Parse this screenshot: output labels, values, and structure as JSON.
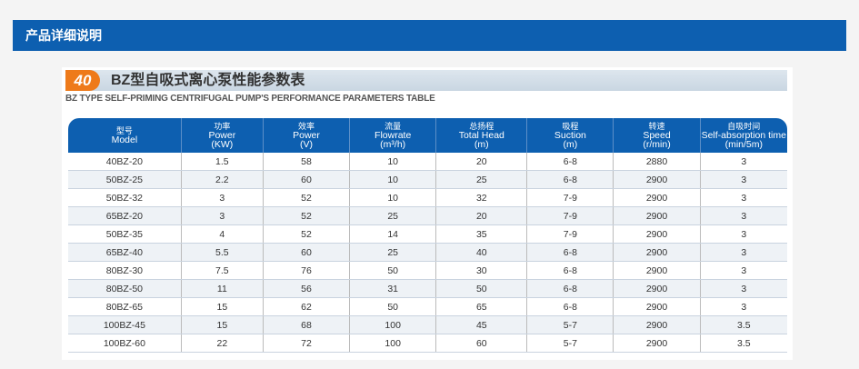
{
  "header": {
    "title": "产品详细说明"
  },
  "table": {
    "badge": "40",
    "title": "BZ型自吸式离心泵性能参数表",
    "subtitle": "BZ TYPE SELF-PRIMING CENTRIFUGAL PUMP'S PERFORMANCE PARAMETERS TABLE",
    "columns": [
      [
        "型号",
        "Model",
        ""
      ],
      [
        "功率",
        "Power",
        "(KW)"
      ],
      [
        "效率",
        "Power",
        "(V)"
      ],
      [
        "流量",
        "Flowrate",
        "(m³/h)"
      ],
      [
        "总扬程",
        "Total Head",
        "(m)"
      ],
      [
        "吸程",
        "Suction",
        "(m)"
      ],
      [
        "转速",
        "Speed",
        "(r/min)"
      ],
      [
        "自吸时间",
        "Self-absorption time",
        "(min/5m)"
      ]
    ],
    "rows": [
      [
        "40BZ-20",
        "1.5",
        "58",
        "10",
        "20",
        "6-8",
        "2880",
        "3"
      ],
      [
        "50BZ-25",
        "2.2",
        "60",
        "10",
        "25",
        "6-8",
        "2900",
        "3"
      ],
      [
        "50BZ-32",
        "3",
        "52",
        "10",
        "32",
        "7-9",
        "2900",
        "3"
      ],
      [
        "65BZ-20",
        "3",
        "52",
        "25",
        "20",
        "7-9",
        "2900",
        "3"
      ],
      [
        "50BZ-35",
        "4",
        "52",
        "14",
        "35",
        "7-9",
        "2900",
        "3"
      ],
      [
        "65BZ-40",
        "5.5",
        "60",
        "25",
        "40",
        "6-8",
        "2900",
        "3"
      ],
      [
        "80BZ-30",
        "7.5",
        "76",
        "50",
        "30",
        "6-8",
        "2900",
        "3"
      ],
      [
        "80BZ-50",
        "11",
        "56",
        "31",
        "50",
        "6-8",
        "2900",
        "3"
      ],
      [
        "80BZ-65",
        "15",
        "62",
        "50",
        "65",
        "6-8",
        "2900",
        "3"
      ],
      [
        "100BZ-45",
        "15",
        "68",
        "100",
        "45",
        "5-7",
        "2900",
        "3.5"
      ],
      [
        "100BZ-60",
        "22",
        "72",
        "100",
        "60",
        "5-7",
        "2900",
        "3.5"
      ]
    ]
  }
}
